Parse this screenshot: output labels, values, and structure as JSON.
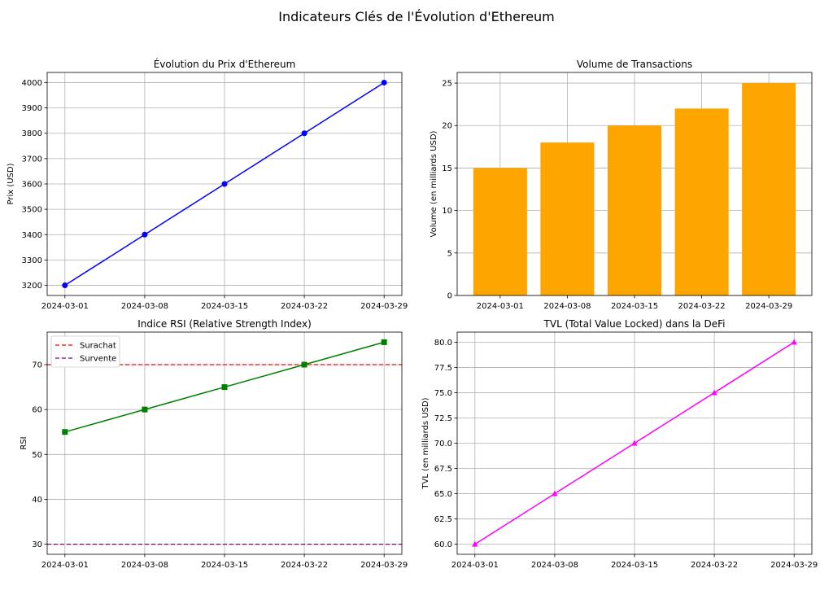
{
  "figure": {
    "title": "Indicateurs Clés de l'Évolution d'Ethereum"
  },
  "chart_data": [
    {
      "type": "line",
      "title": "Évolution du Prix d'Ethereum",
      "xlabel": "",
      "ylabel": "Prix (USD)",
      "categories": [
        "2024-03-01",
        "2024-03-08",
        "2024-03-15",
        "2024-03-22",
        "2024-03-29"
      ],
      "values": [
        3200,
        3400,
        3600,
        3800,
        4000
      ],
      "ylim": [
        3160,
        4040
      ],
      "yticks": [
        3200,
        3300,
        3400,
        3500,
        3600,
        3700,
        3800,
        3900,
        4000
      ],
      "color": "#0000ff",
      "marker": "circle",
      "grid": true
    },
    {
      "type": "bar",
      "title": "Volume de Transactions",
      "xlabel": "",
      "ylabel": "Volume (en milliards USD)",
      "categories": [
        "2024-03-01",
        "2024-03-08",
        "2024-03-15",
        "2024-03-22",
        "2024-03-29"
      ],
      "values": [
        15,
        18,
        20,
        22,
        25
      ],
      "ylim": [
        0,
        26.25
      ],
      "yticks": [
        0,
        5,
        10,
        15,
        20,
        25
      ],
      "color": "#ffa500",
      "grid": true
    },
    {
      "type": "line",
      "title": "Indice RSI (Relative Strength Index)",
      "xlabel": "",
      "ylabel": "RSI",
      "categories": [
        "2024-03-01",
        "2024-03-08",
        "2024-03-15",
        "2024-03-22",
        "2024-03-29"
      ],
      "values": [
        55,
        60,
        65,
        70,
        75
      ],
      "ylim": [
        27.75,
        77.25
      ],
      "yticks": [
        30,
        40,
        50,
        60,
        70
      ],
      "color": "#008000",
      "marker": "square",
      "grid": true,
      "reference_lines": [
        {
          "name": "Surachat",
          "value": 70,
          "color": "#ff0000",
          "style": "dashed"
        },
        {
          "name": "Survente",
          "value": 30,
          "color": "#800080",
          "style": "dashed"
        }
      ],
      "legend": "upper left"
    },
    {
      "type": "line",
      "title": "TVL (Total Value Locked) dans la DeFi",
      "xlabel": "",
      "ylabel": "TVL (en milliards USD)",
      "categories": [
        "2024-03-01",
        "2024-03-08",
        "2024-03-15",
        "2024-03-22",
        "2024-03-29"
      ],
      "values": [
        60,
        65,
        70,
        75,
        80
      ],
      "ylim": [
        59,
        81
      ],
      "yticks": [
        60.0,
        62.5,
        65.0,
        67.5,
        70.0,
        72.5,
        75.0,
        77.5,
        80.0
      ],
      "ytick_labels": [
        "60.0",
        "62.5",
        "65.0",
        "67.5",
        "70.0",
        "72.5",
        "75.0",
        "77.5",
        "80.0"
      ],
      "color": "#ff00ff",
      "marker": "triangle",
      "grid": true
    }
  ]
}
